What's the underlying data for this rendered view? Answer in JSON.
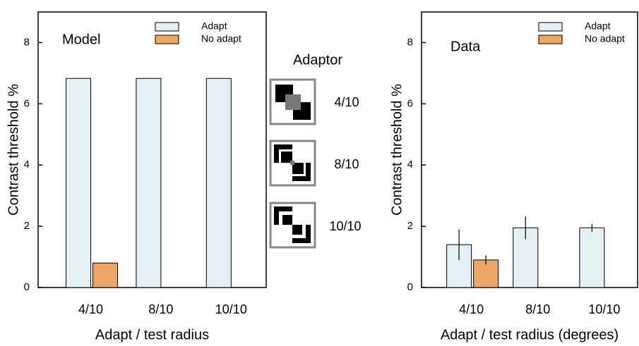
{
  "chart_data": [
    {
      "type": "bar",
      "panel_label": "Model",
      "xlabel": "Adapt / test radius",
      "ylabel": "Contrast threshold %",
      "categories": [
        "4/10",
        "8/10",
        "10/10"
      ],
      "series": [
        {
          "name": "Adapt",
          "color": "#e5f0f4",
          "values": [
            6.83,
            6.83,
            6.83
          ]
        },
        {
          "name": "No adapt",
          "color": "#eca766",
          "values": [
            0.8,
            null,
            null
          ]
        }
      ],
      "ylim": [
        0,
        9
      ],
      "yticks": [
        0,
        2,
        4,
        6,
        8
      ],
      "legend": "upper right"
    },
    {
      "type": "bar",
      "panel_label": "Data",
      "xlabel": "Adapt / test radius (degrees)",
      "ylabel": "Contrast threshold %",
      "categories": [
        "4/10",
        "8/10",
        "10/10"
      ],
      "series": [
        {
          "name": "Adapt",
          "color": "#e5f0f4",
          "values": [
            1.4,
            1.95,
            1.95
          ],
          "errors": [
            0.5,
            0.37,
            0.13
          ]
        },
        {
          "name": "No adapt",
          "color": "#eca766",
          "values": [
            0.9,
            null,
            null
          ],
          "errors": [
            0.15,
            null,
            null
          ]
        }
      ],
      "ylim": [
        0,
        9
      ],
      "yticks": [
        0,
        2,
        4,
        6,
        8
      ],
      "legend": "upper right"
    }
  ],
  "adaptor": {
    "title": "Adaptor",
    "labels": [
      "4/10",
      "8/10",
      "10/10"
    ]
  }
}
